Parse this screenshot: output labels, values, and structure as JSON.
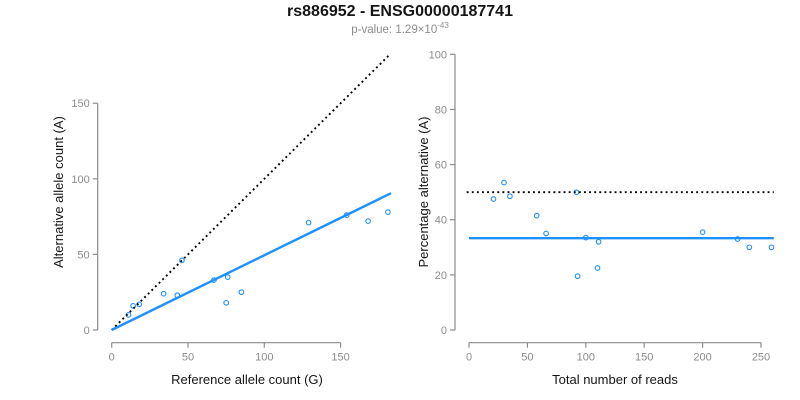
{
  "figure": {
    "title": "rs886952 - ENSG00000187741",
    "subtitle_prefix": "p-value: 1.29×10",
    "subtitle_exponent": "-43",
    "background": "#ffffff"
  },
  "colors": {
    "accent_blue": "#1e90ff",
    "axis_gray": "#8c8c8c",
    "text_black": "#151515",
    "dotted_line_black": "#000000"
  },
  "chart_data": [
    {
      "type": "scatter",
      "panel": "left",
      "xlabel": "Reference allele count (G)",
      "ylabel": "Alternative allele count (A)",
      "xlim": [
        0,
        183
      ],
      "ylim": [
        0,
        182
      ],
      "xticks": [
        0,
        50,
        100,
        150
      ],
      "yticks": [
        0,
        50,
        100,
        150
      ],
      "grid": false,
      "legend": "none",
      "point_style": {
        "shape": "open-circle",
        "color": "#1e90ff"
      },
      "points": [
        [
          11,
          10
        ],
        [
          14,
          16
        ],
        [
          18,
          17
        ],
        [
          34,
          24
        ],
        [
          43,
          23
        ],
        [
          46,
          46
        ],
        [
          67,
          33
        ],
        [
          75,
          18
        ],
        [
          76,
          35
        ],
        [
          85,
          25
        ],
        [
          129,
          71
        ],
        [
          154,
          76
        ],
        [
          168,
          72
        ],
        [
          181,
          78
        ]
      ],
      "lines": [
        {
          "name": "identity-line",
          "style": "dotted",
          "color": "#000000",
          "from": [
            0,
            0
          ],
          "to": [
            181.5,
            181.5
          ]
        },
        {
          "name": "fit-line",
          "style": "solid",
          "color": "#1e90ff",
          "from": [
            0,
            0
          ],
          "to": [
            183,
            90.5
          ]
        }
      ]
    },
    {
      "type": "scatter",
      "panel": "right",
      "xlabel": "Total number of reads",
      "ylabel": "Percentage alternative (A)",
      "xlim": [
        0,
        261
      ],
      "ylim": [
        0,
        100
      ],
      "xticks": [
        0,
        50,
        100,
        150,
        200,
        250
      ],
      "yticks": [
        0,
        20,
        40,
        60,
        80,
        100
      ],
      "grid": false,
      "legend": "none",
      "point_style": {
        "shape": "open-circle",
        "color": "#1e90ff"
      },
      "points": [
        [
          21,
          47.5
        ],
        [
          30,
          53.5
        ],
        [
          35,
          48.5
        ],
        [
          58,
          41.5
        ],
        [
          66,
          35
        ],
        [
          92,
          50
        ],
        [
          93,
          19.5
        ],
        [
          100,
          33.5
        ],
        [
          110,
          22.5
        ],
        [
          111,
          32
        ],
        [
          200,
          35.5
        ],
        [
          230,
          33
        ],
        [
          240,
          30
        ],
        [
          259,
          30
        ]
      ],
      "lines": [
        {
          "name": "expected-50-percent-line",
          "style": "dotted",
          "color": "#000000",
          "from": [
            -2,
            50
          ],
          "to": [
            261,
            50
          ]
        },
        {
          "name": "mean-percentage-line",
          "style": "solid",
          "color": "#1e90ff",
          "from": [
            0,
            33.3
          ],
          "to": [
            261,
            33.3
          ]
        }
      ]
    }
  ]
}
